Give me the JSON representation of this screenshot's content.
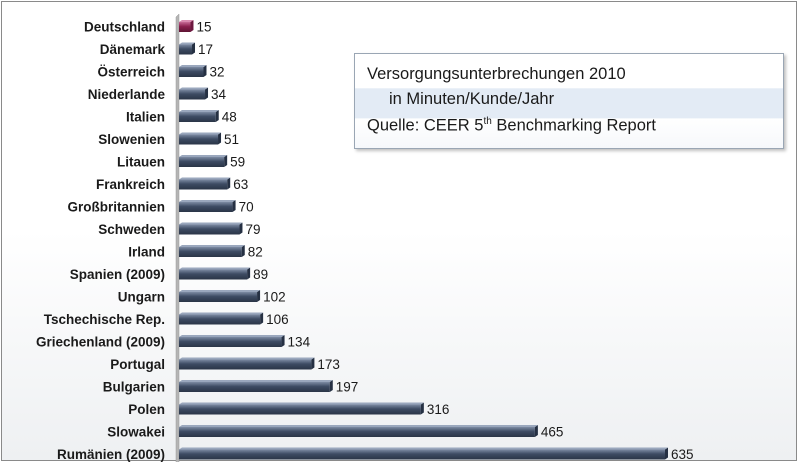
{
  "info_box": {
    "title": "Versorgungsunterbrechungen 2010",
    "subtitle": "in Minuten/Kunde/Jahr",
    "source_prefix": "Quelle:  CEER 5",
    "source_sup": "th",
    "source_suffix": " Benchmarking Report"
  },
  "chart_data": {
    "type": "bar",
    "orientation": "horizontal",
    "categories": [
      "Deutschland",
      "Dänemark",
      "Österreich",
      "Niederlande",
      "Italien",
      "Slowenien",
      "Litauen",
      "Frankreich",
      "Großbritannien",
      "Schweden",
      "Irland",
      "Spanien (2009)",
      "Ungarn",
      "Tschechische Rep.",
      "Griechenland (2009)",
      "Portugal",
      "Bulgarien",
      "Polen",
      "Slowakei",
      "Rumänien (2009)"
    ],
    "values": [
      15,
      17,
      32,
      34,
      48,
      51,
      59,
      63,
      70,
      79,
      82,
      89,
      102,
      106,
      134,
      173,
      197,
      316,
      465,
      635
    ],
    "highlight_index": 0,
    "xlim": [
      0,
      635
    ],
    "grid": false,
    "legend": "none",
    "colors": {
      "bar": "#3d4b63",
      "bar_top": "#7d8ba3",
      "highlight": "#8a1f4e",
      "highlight_top": "#c76a96",
      "axis": "#9a9a9a"
    }
  }
}
